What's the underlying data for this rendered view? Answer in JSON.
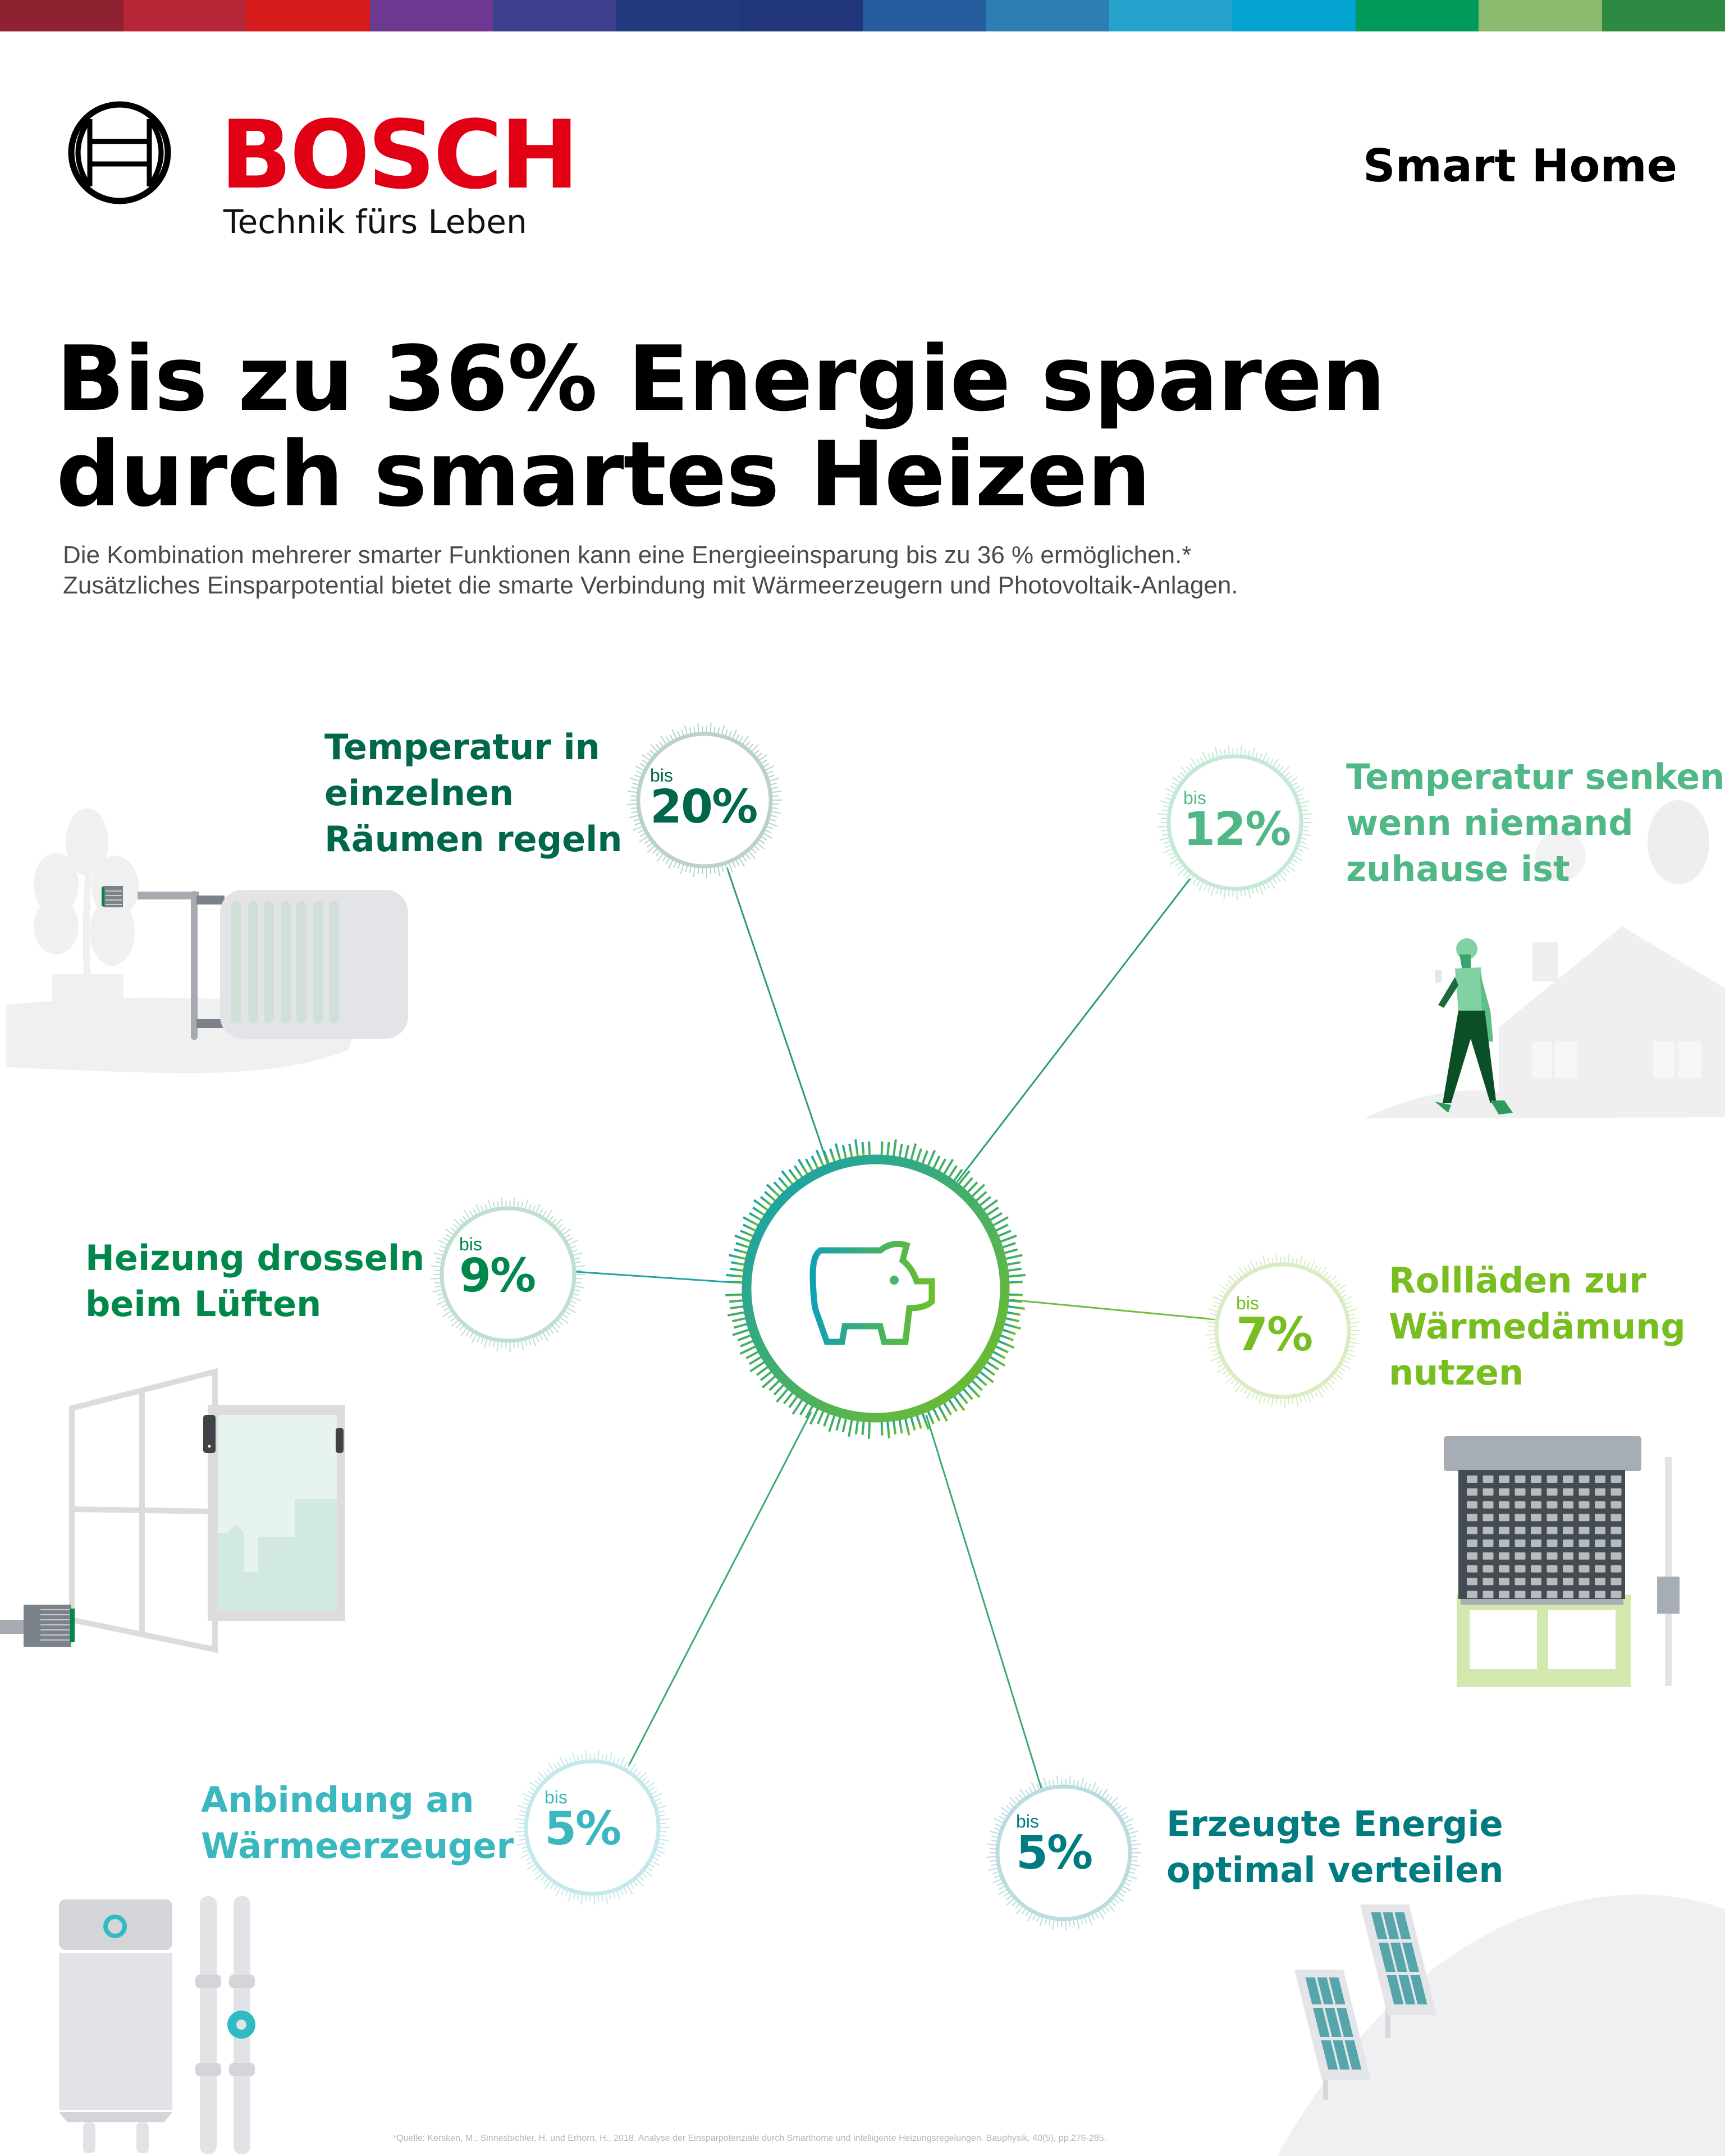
{
  "top_bar": {
    "colors": [
      "#8f2231",
      "#b72738",
      "#d51b1c",
      "#6d3890",
      "#3c3f8e",
      "#233a7f",
      "#22367c",
      "#245c9d",
      "#2e7db3",
      "#26a3cc",
      "#04a4d1",
      "#009a5b",
      "#8bb96e",
      "#2e8a43"
    ]
  },
  "header": {
    "brand": "BOSCH",
    "tagline": "Technik fürs Leben",
    "section": "Smart Home",
    "brand_color": "#e20015"
  },
  "hero": {
    "headline_line1": "Bis zu 36% Energie sparen",
    "headline_line2": "durch smartes Heizen",
    "subtitle_line1": "Die Kombination mehrerer smarter Funktionen kann eine Energieeinsparung bis zu 36 % ermöglichen.*",
    "subtitle_line2": "Zusätzliches Einsparpotential bietet die smarte Verbindung mit Wärmeerzeugern und Photovoltaik-Anlagen."
  },
  "center": {
    "icon": "piggy-bank-icon",
    "gradient_start": "#12a0b4",
    "gradient_end": "#78be20"
  },
  "features": [
    {
      "id": "rooms",
      "label_lines": [
        "Temperatur in",
        "einzelnen",
        "Räumen regeln"
      ],
      "bis": "bis",
      "value": "20%",
      "color": "#00674a",
      "ring_color": "#b9d3c8",
      "illustration": "radiator-illustration"
    },
    {
      "id": "away",
      "label_lines": [
        "Temperatur senken",
        "wenn niemand",
        "zuhause ist"
      ],
      "bis": "bis",
      "value": "12%",
      "color": "#4fb886",
      "ring_color": "#c6e8d6",
      "illustration": "walking-person-house-illustration"
    },
    {
      "id": "ventilate",
      "label_lines": [
        "Heizung drosseln",
        "beim Lüften"
      ],
      "bis": "bis",
      "value": "9%",
      "color": "#00884a",
      "ring_color": "#bfe0cf",
      "illustration": "open-window-illustration"
    },
    {
      "id": "shutters",
      "label_lines": [
        "Rollläden zur",
        "Wärmedämung",
        "nutzen"
      ],
      "bis": "bis",
      "value": "7%",
      "color": "#78be20",
      "ring_color": "#d9ecc4",
      "illustration": "roller-shutter-illustration"
    },
    {
      "id": "generator",
      "label_lines": [
        "Anbindung an",
        "Wärmeerzeuger"
      ],
      "bis": "bis",
      "value": "5%",
      "color": "#3bb7c0",
      "ring_color": "#c5e8ec",
      "illustration": "heat-generator-illustration"
    },
    {
      "id": "pv",
      "label_lines": [
        "Erzeugte Energie",
        "optimal verteilen"
      ],
      "bis": "bis",
      "value": "5%",
      "color": "#007b80",
      "ring_color": "#bcdcdf",
      "illustration": "solar-panels-illustration"
    }
  ],
  "chart_data": {
    "type": "table",
    "title": "Bis zu 36% Energie sparen durch smartes Heizen",
    "categories": [
      "Temperatur in einzelnen Räumen regeln",
      "Temperatur senken wenn niemand zuhause ist",
      "Heizung drosseln beim Lüften",
      "Rollläden zur Wärmedämung nutzen",
      "Anbindung an Wärmeerzeuger",
      "Erzeugte Energie optimal verteilen"
    ],
    "values": [
      20,
      12,
      9,
      7,
      5,
      5
    ],
    "unit": "% (bis zu)",
    "total_label": "bis zu 36%"
  },
  "footnote": "*Quelle: Kersken, M., Sinnesbichler, H. und Erhorn, H., 2018. Analyse der Einsparpotenziale durch Smarthome und intelligente Heizungsregelungen. Bauphysik, 40(5), pp.276-285."
}
